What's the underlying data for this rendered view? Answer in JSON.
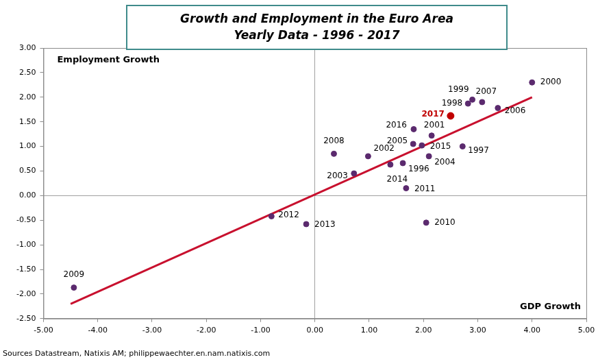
{
  "chart_data": {
    "type": "scatter",
    "title": "Growth and Employment in the Euro Area",
    "subtitle": "Yearly Data - 1996 - 2017",
    "x_label": "GDP Growth",
    "y_label": "Employment Growth",
    "source": "Sources Datastream, Natixis AM; philippewaechter.en.nam.natixis.com",
    "grid": false,
    "xlim": [
      -5,
      5
    ],
    "xticks": [
      {
        "value": -5,
        "label": "-5.00"
      },
      {
        "value": -4,
        "label": "-4.00"
      },
      {
        "value": -3,
        "label": "-3.00"
      },
      {
        "value": -2,
        "label": "-2.00"
      },
      {
        "value": -1,
        "label": "-1.00"
      },
      {
        "value": 0,
        "label": "0.00"
      },
      {
        "value": 1,
        "label": "1.00"
      },
      {
        "value": 2,
        "label": "2.00"
      },
      {
        "value": 3,
        "label": "3.00"
      },
      {
        "value": 4,
        "label": "4.00"
      },
      {
        "value": 5,
        "label": "5.00"
      }
    ],
    "ylim": [
      -2.5,
      3
    ],
    "yticks": [
      {
        "value": -2.5,
        "label": "-2.50"
      },
      {
        "value": -2,
        "label": "-2.00"
      },
      {
        "value": -1.5,
        "label": "-1.50"
      },
      {
        "value": -1,
        "label": "-1.00"
      },
      {
        "value": -0.5,
        "label": "-0.50"
      },
      {
        "value": 0,
        "label": "0.00"
      },
      {
        "value": 0.5,
        "label": "0.50"
      },
      {
        "value": 1,
        "label": "1.00"
      },
      {
        "value": 1.5,
        "label": "1.50"
      },
      {
        "value": 2,
        "label": "2.00"
      },
      {
        "value": 2.5,
        "label": "2.50"
      },
      {
        "value": 3,
        "label": "3.00"
      }
    ],
    "series": [
      {
        "type": "scatter",
        "color": "#5b2a6e",
        "marker": "circle",
        "labels": [
          "1996",
          "1997",
          "1998",
          "1999",
          "2000",
          "2001",
          "2002",
          "2003",
          "2004",
          "2005",
          "2006",
          "2007",
          "2008",
          "2009",
          "2010",
          "2011",
          "2012",
          "2013",
          "2014",
          "2015",
          "2016",
          "2017"
        ],
        "x": [
          1.62,
          2.72,
          2.82,
          2.9,
          4.0,
          2.15,
          0.98,
          0.72,
          2.1,
          1.81,
          3.37,
          3.08,
          0.35,
          -4.44,
          2.05,
          1.68,
          -0.8,
          -0.16,
          1.39,
          1.97,
          1.82,
          2.5
        ],
        "values": [
          0.66,
          1.0,
          1.87,
          1.95,
          2.3,
          1.22,
          0.8,
          0.45,
          0.8,
          1.05,
          1.78,
          1.9,
          0.85,
          -1.87,
          -0.55,
          0.15,
          -0.42,
          -0.58,
          0.63,
          1.02,
          1.35,
          1.62
        ],
        "colors": [
          "#5b2a6e",
          "#5b2a6e",
          "#5b2a6e",
          "#5b2a6e",
          "#5b2a6e",
          "#5b2a6e",
          "#5b2a6e",
          "#5b2a6e",
          "#5b2a6e",
          "#5b2a6e",
          "#5b2a6e",
          "#5b2a6e",
          "#5b2a6e",
          "#5b2a6e",
          "#5b2a6e",
          "#5b2a6e",
          "#5b2a6e",
          "#5b2a6e",
          "#5b2a6e",
          "#5b2a6e",
          "#5b2a6e",
          "#c00000"
        ]
      },
      {
        "type": "line",
        "color": "#c8102e",
        "line_style": "solid",
        "x": [
          -4.5,
          4.0
        ],
        "values": [
          -2.2,
          2.0
        ]
      }
    ]
  }
}
